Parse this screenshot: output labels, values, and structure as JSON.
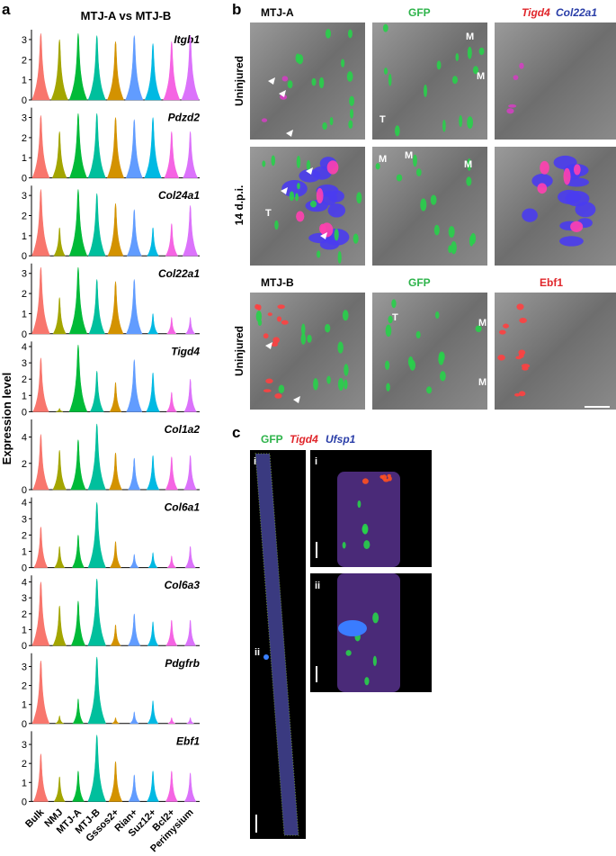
{
  "panel_a": {
    "label": "a",
    "title": "MTJ-A vs MTJ-B",
    "ylabel": "Expression level",
    "categories": [
      "Bulk",
      "NMJ",
      "MTJ-A",
      "MTJ-B",
      "Gssos2+",
      "Rian+",
      "Suz12+",
      "Bcl2+",
      "Perimysium"
    ],
    "colors": [
      "#f8766d",
      "#a3a500",
      "#00ba38",
      "#00bf9d",
      "#d39200",
      "#619cff",
      "#00b9e3",
      "#f564e3",
      "#db72fb"
    ],
    "genes": [
      {
        "name": "Itgb1",
        "ylim": [
          0,
          3.4
        ],
        "yticks": [
          0,
          1,
          2,
          3
        ],
        "max": [
          3.3,
          3.0,
          3.3,
          3.2,
          2.9,
          3.2,
          2.8,
          2.9,
          3.2
        ]
      },
      {
        "name": "Pdzd2",
        "ylim": [
          0,
          3.4
        ],
        "yticks": [
          0,
          1,
          2,
          3
        ],
        "max": [
          3.1,
          2.3,
          3.2,
          3.2,
          3.0,
          2.9,
          3.0,
          2.3,
          2.3
        ]
      },
      {
        "name": "Col24a1",
        "ylim": [
          0,
          3.4
        ],
        "yticks": [
          0,
          1,
          2,
          3
        ],
        "max": [
          3.3,
          1.4,
          3.3,
          3.1,
          2.6,
          2.3,
          1.4,
          1.6,
          2.5
        ]
      },
      {
        "name": "Col22a1",
        "ylim": [
          0,
          3.4
        ],
        "yticks": [
          0,
          1,
          2,
          3
        ],
        "max": [
          3.3,
          1.8,
          3.3,
          2.7,
          2.6,
          2.7,
          1.0,
          0.8,
          0.8
        ]
      },
      {
        "name": "Tigd4",
        "ylim": [
          0,
          4.2
        ],
        "yticks": [
          0,
          1,
          2,
          3,
          4
        ],
        "max": [
          3.3,
          0.2,
          4.1,
          2.5,
          1.8,
          3.2,
          2.4,
          1.2,
          2.0
        ]
      },
      {
        "name": "Col1a2",
        "ylim": [
          0,
          5.2
        ],
        "yticks": [
          0,
          2,
          4
        ],
        "max": [
          4.2,
          3.0,
          3.8,
          5.0,
          2.8,
          2.4,
          2.6,
          2.5,
          2.6
        ]
      },
      {
        "name": "Col6a1",
        "ylim": [
          0,
          4.2
        ],
        "yticks": [
          0,
          1,
          2,
          3,
          4
        ],
        "max": [
          2.5,
          1.3,
          2.0,
          4.0,
          1.6,
          0.8,
          0.9,
          0.7,
          1.3
        ]
      },
      {
        "name": "Col6a3",
        "ylim": [
          0,
          4.3
        ],
        "yticks": [
          0,
          1,
          2,
          3,
          4
        ],
        "max": [
          4.0,
          2.5,
          2.8,
          4.2,
          1.3,
          2.0,
          1.5,
          1.6,
          1.6
        ]
      },
      {
        "name": "Pdgfrb",
        "ylim": [
          0,
          3.6
        ],
        "yticks": [
          0,
          1,
          2,
          3
        ],
        "max": [
          3.3,
          0.4,
          1.3,
          3.5,
          0.3,
          0.6,
          1.2,
          0.3,
          0.3
        ]
      },
      {
        "name": "Ebf1",
        "ylim": [
          0,
          3.6
        ],
        "yticks": [
          0,
          1,
          2,
          3
        ],
        "max": [
          2.5,
          1.3,
          1.6,
          3.5,
          2.1,
          1.4,
          1.6,
          1.6,
          1.5
        ]
      }
    ]
  },
  "panel_b": {
    "label": "b",
    "headers_top": [
      "MTJ-A",
      "GFP",
      "Tigd4",
      "Col22a1"
    ],
    "headers_bottom": [
      "MTJ-B",
      "GFP",
      "Ebf1"
    ],
    "row_labels": [
      "Uninjured",
      "14 d.p.i.",
      "Uninjured"
    ],
    "image_labels": [
      "M",
      "M",
      "T",
      "T",
      "M",
      "M",
      "M",
      "T",
      "M",
      "M"
    ]
  },
  "panel_c": {
    "label": "c",
    "legend": [
      "GFP",
      "Tigd4",
      "Ufsp1"
    ],
    "image_labels": [
      "i",
      "ii",
      "i",
      "ii"
    ]
  }
}
